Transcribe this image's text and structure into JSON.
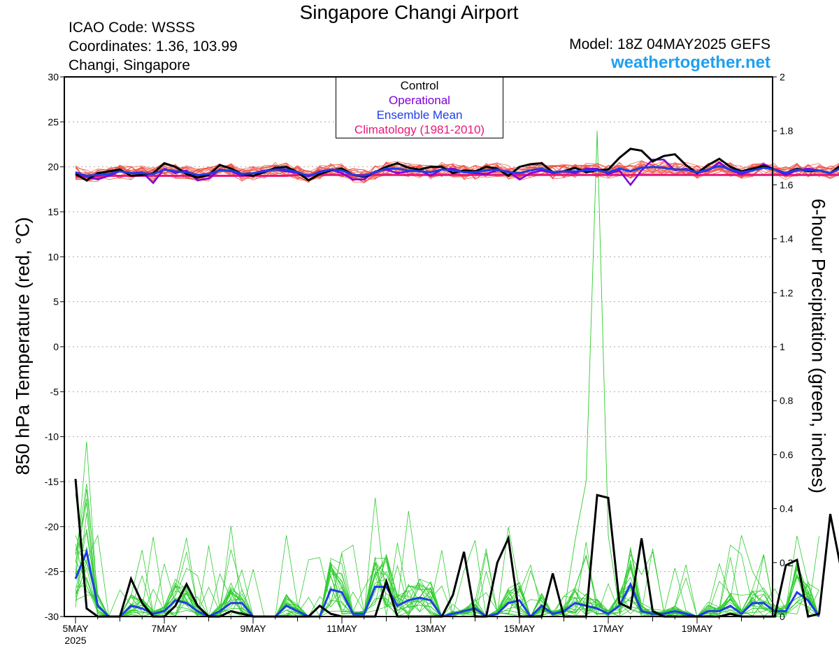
{
  "header": {
    "title": "Singapore Changi Airport",
    "icao": "ICAO Code: WSSS",
    "coordinates": "Coordinates: 1.36, 103.99",
    "place": "Changi, Singapore",
    "model": "Model: 18Z 04MAY2025 GEFS",
    "site": "weathertogether.net"
  },
  "legend": {
    "entries": [
      {
        "label": "Control",
        "color": "#000000"
      },
      {
        "label": "Operational",
        "color": "#8000d8"
      },
      {
        "label": "Ensemble Mean",
        "color": "#1f3de6"
      },
      {
        "label": "Climatology (1981-2010)",
        "color": "#e6187a"
      }
    ]
  },
  "chart_data": {
    "type": "line",
    "y_left_label": "850 hPa Temperature (red, °C)",
    "y_right_label": "6-hour Precipitation (green, inches)",
    "y_left_range": [
      -30,
      30
    ],
    "y_left_ticks": [
      "30",
      "25",
      "20",
      "15",
      "10",
      "5",
      "0",
      "-5",
      "-10",
      "-15",
      "-20",
      "-25",
      "-30"
    ],
    "y_right_range": [
      0,
      2
    ],
    "y_right_ticks": [
      "2",
      "1.8",
      "1.6",
      "1.4",
      "1.2",
      "1",
      "0.8",
      "0.6",
      "0.4",
      "0.2",
      "0"
    ],
    "x_range_days": [
      0,
      15.75
    ],
    "x_ticks": [
      {
        "label": "5MAY",
        "sub": "2025",
        "day": 0
      },
      {
        "label": "7MAY",
        "day": 2
      },
      {
        "label": "9MAY",
        "day": 4
      },
      {
        "label": "11MAY",
        "day": 6
      },
      {
        "label": "13MAY",
        "day": 8
      },
      {
        "label": "15MAY",
        "day": 10
      },
      {
        "label": "17MAY",
        "day": 12
      },
      {
        "label": "19MAY",
        "day": 14
      }
    ],
    "grid": "dotted horizontal",
    "colors": {
      "members": "#f04a3a",
      "members_precip": "#2ecc2e",
      "control": "#000000",
      "operational": "#8000d8",
      "mean": "#1f3de6",
      "climatology": "#e6187a"
    },
    "series": {
      "control_temp": [
        19.2,
        18.5,
        19.3,
        19.5,
        19.7,
        19.0,
        19.1,
        19.3,
        20.4,
        20.0,
        19.2,
        18.8,
        19.1,
        20.2,
        19.8,
        19.2,
        19.0,
        19.4,
        19.9,
        20.0,
        19.4,
        18.5,
        19.2,
        19.6,
        19.8,
        19.1,
        18.9,
        19.4,
        20.0,
        20.4,
        19.9,
        19.7,
        20.0,
        20.0,
        19.3,
        19.6,
        19.5,
        20.0,
        19.8,
        19.0,
        20.0,
        20.3,
        20.4,
        19.4,
        19.5,
        19.9,
        19.4,
        19.6,
        19.7,
        21.0,
        22.0,
        21.8,
        20.6,
        21.2,
        21.4,
        20.2,
        19.3,
        20.2,
        20.9,
        20.0,
        19.5,
        19.8,
        20.1,
        19.7,
        19.3,
        19.8,
        19.5,
        19.6,
        19.3,
        20.2
      ],
      "operational_temp": [
        19.3,
        18.9,
        18.6,
        19.0,
        19.5,
        19.3,
        19.4,
        18.2,
        19.8,
        19.3,
        19.6,
        18.5,
        18.7,
        19.7,
        19.5,
        19.0,
        19.3,
        19.6,
        19.7,
        19.5,
        19.3,
        18.9,
        19.5,
        19.7,
        19.3,
        18.6,
        18.6,
        19.5,
        19.7,
        19.3,
        19.5,
        19.6,
        19.0,
        19.7,
        19.8,
        19.4,
        19.3,
        19.2,
        19.6,
        19.5,
        18.6,
        19.3,
        19.6,
        19.3,
        19.5,
        19.3,
        19.8,
        19.8,
        19.2,
        19.6,
        18.0,
        19.6,
        20.8,
        20.8,
        19.6,
        19.8,
        19.3,
        19.6,
        20.5,
        19.6,
        19.2,
        19.6,
        20.3,
        19.7,
        19.1,
        19.6,
        19.8,
        19.6,
        19.3,
        20.0
      ],
      "mean_temp": [
        19.4,
        19.0,
        19.1,
        19.2,
        19.5,
        19.3,
        19.3,
        19.2,
        19.7,
        19.5,
        19.4,
        19.1,
        19.2,
        19.6,
        19.6,
        19.2,
        19.3,
        19.5,
        19.7,
        19.7,
        19.4,
        19.0,
        19.4,
        19.7,
        19.6,
        19.1,
        19.0,
        19.4,
        19.8,
        19.8,
        19.6,
        19.5,
        19.4,
        19.7,
        19.6,
        19.4,
        19.4,
        19.6,
        19.7,
        19.4,
        19.3,
        19.6,
        19.8,
        19.4,
        19.5,
        19.5,
        19.6,
        19.6,
        19.4,
        19.8,
        19.5,
        19.9,
        20.0,
        19.9,
        19.7,
        19.7,
        19.4,
        19.7,
        20.1,
        19.7,
        19.4,
        19.6,
        19.9,
        19.7,
        19.3,
        19.7,
        19.6,
        19.6,
        19.3,
        19.9
      ],
      "climatology_temp": [
        18.9,
        18.9,
        18.9,
        19.0,
        19.0,
        19.0,
        19.0,
        19.0,
        19.0,
        19.0,
        19.0,
        19.0,
        19.0,
        19.0,
        19.0,
        19.0,
        19.0,
        19.0,
        19.0,
        19.0,
        19.1,
        19.1,
        19.1,
        19.1,
        19.1,
        19.1,
        19.1,
        19.1,
        19.1,
        19.1,
        19.1,
        19.1,
        19.1,
        19.1,
        19.1,
        19.1,
        19.1,
        19.1,
        19.1,
        19.1,
        19.1,
        19.1,
        19.1,
        19.1,
        19.1,
        19.1,
        19.1,
        19.1,
        19.1,
        19.1,
        19.1,
        19.1,
        19.1,
        19.1,
        19.1,
        19.1,
        19.1,
        19.1,
        19.1,
        19.1,
        19.1,
        19.1,
        19.1,
        19.1,
        19.1,
        19.1,
        19.1,
        19.1,
        19.1,
        19.1
      ],
      "control_precip": [
        0.51,
        0.03,
        0.0,
        0.0,
        0.0,
        0.14,
        0.05,
        0.0,
        0.0,
        0.04,
        0.12,
        0.04,
        0.0,
        0.0,
        0.02,
        0.01,
        0.0,
        0.0,
        0.0,
        0.0,
        0.0,
        0.0,
        0.04,
        0.01,
        0.0,
        0.0,
        0.0,
        0.0,
        0.13,
        0.0,
        0.0,
        0.0,
        0.0,
        0.0,
        0.08,
        0.24,
        0.0,
        0.0,
        0.2,
        0.29,
        0.0,
        0.0,
        0.0,
        0.16,
        0.0,
        0.0,
        0.0,
        0.45,
        0.44,
        0.05,
        0.03,
        0.29,
        0.02,
        0.0,
        0.0,
        0.0,
        0.0,
        0.0,
        0.0,
        0.01,
        0.0,
        0.0,
        0.0,
        0.0,
        0.19,
        0.21,
        0.0,
        0.01,
        0.38,
        0.17,
        0.03,
        0.0,
        0.16,
        0.12,
        0.0
      ],
      "mean_precip": [
        0.14,
        0.24,
        0.04,
        0.0,
        0.0,
        0.04,
        0.03,
        0.01,
        0.02,
        0.06,
        0.05,
        0.02,
        0.0,
        0.02,
        0.05,
        0.05,
        0.0,
        0.0,
        0.0,
        0.04,
        0.02,
        0.0,
        0.0,
        0.1,
        0.09,
        0.01,
        0.01,
        0.11,
        0.11,
        0.04,
        0.06,
        0.07,
        0.06,
        0.0,
        0.01,
        0.02,
        0.03,
        0.0,
        0.01,
        0.05,
        0.06,
        0.0,
        0.04,
        0.01,
        0.02,
        0.05,
        0.04,
        0.03,
        0.01,
        0.04,
        0.12,
        0.02,
        0.01,
        0.01,
        0.02,
        0.01,
        0.0,
        0.02,
        0.02,
        0.04,
        0.01,
        0.05,
        0.05,
        0.02,
        0.02,
        0.09,
        0.06,
        0.0
      ]
    }
  }
}
